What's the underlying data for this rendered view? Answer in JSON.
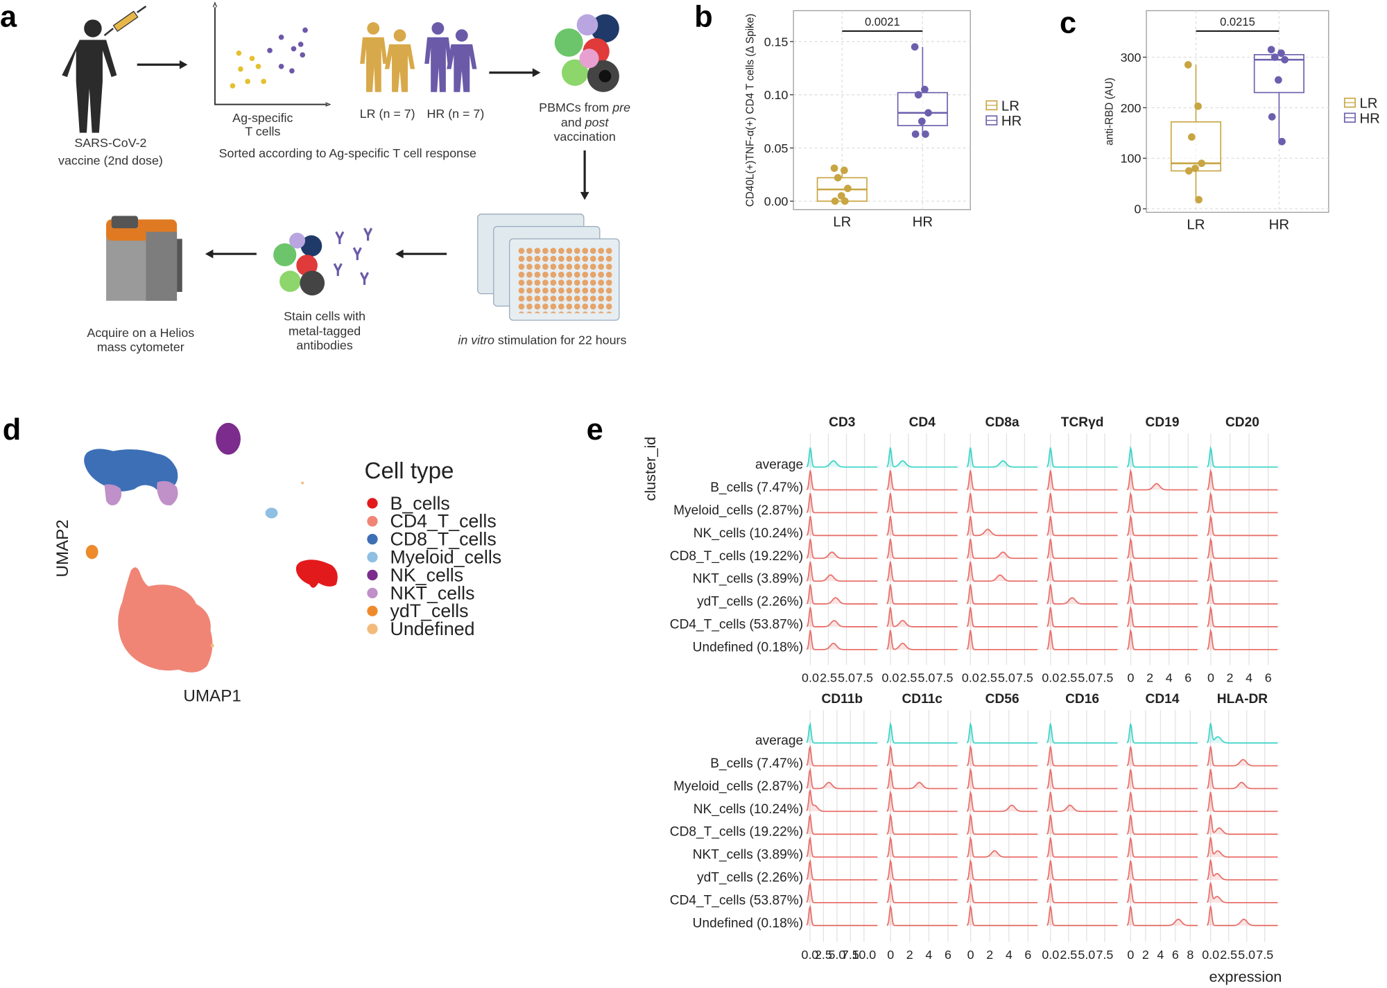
{
  "diagram": {
    "label": "a",
    "vaccine": [
      "SARS-CoV-2",
      "vaccine (2nd dose)"
    ],
    "ag_cells": [
      "Ag-specific",
      "T cells"
    ],
    "sorted": "Sorted according to Ag-specific T cell response",
    "lr": "LR (n = 7)",
    "hr": "HR (n = 7)",
    "pbmc": [
      [
        "PBMCs from ",
        "pre"
      ],
      [
        "and ",
        "post"
      ],
      [
        "vaccination"
      ]
    ],
    "stim": [
      "in vitro",
      " stimulation for 22 hours"
    ],
    "stain": [
      "Stain cells with",
      "metal-tagged",
      "antibodies"
    ],
    "acquire": [
      "Acquire on a Helios",
      "mass cytometer"
    ]
  },
  "chart_data": [
    {
      "type": "box",
      "label": "b",
      "ylabel": "CD40L(+)TNF-α(+) CD4 T cells (Δ Spike)",
      "categories": [
        "LR",
        "HR"
      ],
      "annotation": "0.0021",
      "grid": true,
      "legend": "right",
      "ylim": [
        -0.008,
        0.179
      ],
      "yticks": [
        {
          "value": 0,
          "label": "0.00"
        },
        {
          "value": 0.05,
          "label": "0.05"
        },
        {
          "value": 0.1,
          "label": "0.10"
        },
        {
          "value": 0.15,
          "label": "0.15"
        }
      ],
      "series": [
        {
          "name": "LR",
          "color": "#c8a542",
          "whisker_low": 0,
          "q1": 0,
          "median": 0.011,
          "q3": 0.022,
          "whisker_high": 0.031,
          "points": [
            0.031,
            0.029,
            0.022,
            0.012,
            0.005,
            0,
            0
          ]
        },
        {
          "name": "HR",
          "color": "#6b5fad",
          "whisker_low": 0.063,
          "q1": 0.071,
          "median": 0.083,
          "q3": 0.102,
          "whisker_high": 0.145,
          "points": [
            0.145,
            0.105,
            0.1,
            0.083,
            0.075,
            0.063,
            0.063
          ]
        }
      ]
    },
    {
      "type": "box",
      "label": "c",
      "ylabel": "anti-RBD (AU)",
      "categories": [
        "LR",
        "HR"
      ],
      "annotation": "0.0215",
      "grid": true,
      "legend": "right",
      "ylim": [
        -7,
        392
      ],
      "yticks": [
        0,
        100,
        200,
        300
      ],
      "series": [
        {
          "name": "LR",
          "color": "#c8a542",
          "whisker_low": 18,
          "q1": 75,
          "median": 90,
          "q3": 172,
          "whisker_high": 285,
          "points": [
            285,
            203,
            142,
            90,
            80,
            75,
            18
          ]
        },
        {
          "name": "HR",
          "color": "#6b5fad",
          "whisker_low": 133,
          "q1": 230,
          "median": 295,
          "q3": 305,
          "whisker_high": 315,
          "points": [
            315,
            308,
            300,
            295,
            255,
            182,
            133
          ]
        }
      ]
    },
    {
      "type": "umap",
      "label": "d",
      "xlabel": "UMAP1",
      "ylabel": "UMAP2",
      "legend_title": "Cell type",
      "series": [
        {
          "name": "B_cells",
          "color": "#e31a1c"
        },
        {
          "name": "CD4_T_cells",
          "color": "#f08576"
        },
        {
          "name": "CD8_T_cells",
          "color": "#3c6fb6"
        },
        {
          "name": "Myeloid_cells",
          "color": "#8fbfe2"
        },
        {
          "name": "NK_cells",
          "color": "#7b2c8c"
        },
        {
          "name": "NKT_cells",
          "color": "#c090c8"
        },
        {
          "name": "ydT_cells",
          "color": "#ee8a2c"
        },
        {
          "name": "Undefined",
          "color": "#f2bb7c"
        }
      ]
    },
    {
      "type": "ridgeline",
      "label": "e",
      "ylabel": "cluster_id",
      "xlabel": "expression",
      "rows": [
        "average",
        "B_cells (7.47%)",
        "Myeloid_cells (2.87%)",
        "NK_cells (10.24%)",
        "CD8_T_cells (19.22%)",
        "NKT_cells (3.89%)",
        "ydT_cells (2.26%)",
        "CD4_T_cells (53.87%)",
        "Undefined (0.18%)"
      ],
      "row_colors": [
        "#40d4c8",
        "#e8706a",
        "#e8706a",
        "#e8706a",
        "#e8706a",
        "#e8706a",
        "#e8706a",
        "#e8706a",
        "#e8706a"
      ],
      "facets": [
        {
          "title": "CD3",
          "xlim": [
            -0.5,
            9.3
          ],
          "xticks": [
            {
              "value": 0,
              "label": "0.0"
            },
            2.5,
            {
              "value": 5,
              "label": "5.0"
            },
            7.5
          ],
          "modes": [
            3.2,
            null,
            null,
            null,
            3.0,
            2.8,
            3.5,
            3.3,
            3.2
          ]
        },
        {
          "title": "CD4",
          "xlim": [
            -0.5,
            9.3
          ],
          "xticks": [
            {
              "value": 0,
              "label": "0.0"
            },
            2.5,
            {
              "value": 5,
              "label": "5.0"
            },
            7.5
          ],
          "modes": [
            1.7,
            null,
            null,
            null,
            null,
            null,
            null,
            1.7,
            1.7
          ]
        },
        {
          "title": "CD8a",
          "xlim": [
            -0.5,
            9.3
          ],
          "xticks": [
            {
              "value": 0,
              "label": "0.0"
            },
            2.5,
            {
              "value": 5,
              "label": "5.0"
            },
            7.5
          ],
          "modes": [
            4.5,
            null,
            null,
            2.4,
            4.5,
            4.1,
            null,
            null,
            null
          ]
        },
        {
          "title": "TCRγd",
          "xlim": [
            -0.5,
            9.3
          ],
          "xticks": [
            {
              "value": 0,
              "label": "0.0"
            },
            2.5,
            {
              "value": 5,
              "label": "5.0"
            },
            7.5
          ],
          "modes": [
            null,
            null,
            null,
            null,
            null,
            null,
            3.0,
            null,
            null
          ]
        },
        {
          "title": "CD19",
          "xlim": [
            -0.4,
            7.0
          ],
          "xticks": [
            0,
            2,
            4,
            6
          ],
          "modes": [
            null,
            2.7,
            null,
            null,
            null,
            null,
            null,
            null,
            null
          ]
        },
        {
          "title": "CD20",
          "xlim": [
            -0.4,
            7.0
          ],
          "xticks": [
            0,
            2,
            4,
            6
          ],
          "modes": [
            null,
            null,
            null,
            null,
            null,
            null,
            null,
            null,
            null
          ]
        },
        {
          "title": "CD11b",
          "xlim": [
            -0.6,
            12.5
          ],
          "xticks": [
            {
              "value": 0,
              "label": "0.0"
            },
            2.5,
            {
              "value": 5,
              "label": "5.0"
            },
            7.5,
            {
              "value": 10,
              "label": "10.0"
            }
          ],
          "modes": [
            null,
            null,
            3.5,
            0.8,
            null,
            null,
            null,
            null,
            null
          ]
        },
        {
          "title": "CD11c",
          "xlim": [
            -0.4,
            7.0
          ],
          "xticks": [
            0,
            2,
            4,
            6
          ],
          "modes": [
            null,
            null,
            3.0,
            null,
            null,
            null,
            null,
            null,
            null
          ]
        },
        {
          "title": "CD56",
          "xlim": [
            -0.4,
            7.0
          ],
          "xticks": [
            0,
            2,
            4,
            6
          ],
          "modes": [
            null,
            null,
            null,
            4.3,
            null,
            2.5,
            null,
            null,
            null
          ]
        },
        {
          "title": "CD16",
          "xlim": [
            -0.5,
            9.3
          ],
          "xticks": [
            {
              "value": 0,
              "label": "0.0"
            },
            2.5,
            {
              "value": 5,
              "label": "5.0"
            },
            7.5
          ],
          "modes": [
            null,
            null,
            null,
            2.7,
            null,
            null,
            null,
            null,
            null
          ]
        },
        {
          "title": "CD14",
          "xlim": [
            -0.5,
            9.0
          ],
          "xticks": [
            0,
            2,
            4,
            6,
            8
          ],
          "modes": [
            null,
            null,
            null,
            null,
            null,
            null,
            null,
            null,
            6.4
          ]
        },
        {
          "title": "HLA-DR",
          "xlim": [
            -0.5,
            9.3
          ],
          "xticks": [
            {
              "value": 0,
              "label": "0.0"
            },
            2.5,
            {
              "value": 5,
              "label": "5.0"
            },
            7.5
          ],
          "modes": [
            1.0,
            4.5,
            4.3,
            null,
            1.2,
            1.0,
            0.9,
            0.9,
            4.6
          ]
        }
      ]
    }
  ]
}
